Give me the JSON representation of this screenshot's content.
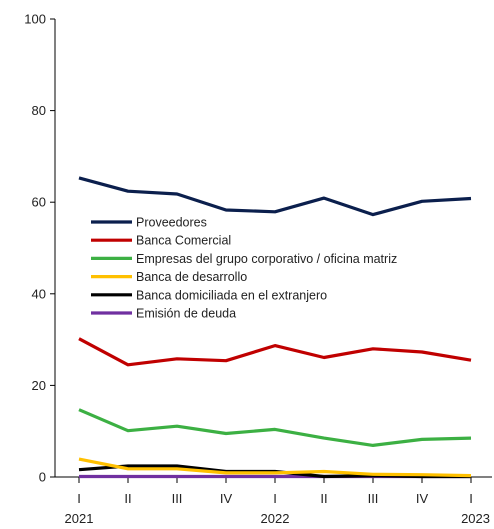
{
  "chart_data": {
    "type": "line",
    "title": "",
    "xlabel": "",
    "ylabel": "",
    "ylim": [
      0,
      100
    ],
    "yticks": [
      0,
      20,
      40,
      60,
      80,
      100
    ],
    "grid": false,
    "legend_position": "center-left",
    "categories": [
      "I",
      "II",
      "III",
      "IV",
      "I",
      "II",
      "III",
      "IV",
      "I"
    ],
    "years": [
      {
        "label": "2021",
        "index": 0
      },
      {
        "label": "2022",
        "index": 4
      },
      {
        "label": "2023",
        "index": 8
      }
    ],
    "series": [
      {
        "name": "Proveedores",
        "color": "#0b1f4d",
        "values": [
          65.3,
          62.4,
          61.8,
          58.3,
          57.9,
          60.9,
          57.3,
          60.2,
          60.8
        ]
      },
      {
        "name": "Banca Comercial",
        "color": "#c00000",
        "values": [
          30.2,
          24.5,
          25.8,
          25.4,
          28.7,
          26.1,
          28.0,
          27.3,
          25.5
        ]
      },
      {
        "name": "Empresas del grupo corporativo / oficina matriz",
        "color": "#3cb043",
        "values": [
          14.7,
          10.1,
          11.1,
          9.5,
          10.4,
          8.5,
          6.9,
          8.2,
          8.5
        ]
      },
      {
        "name": "Banca de desarrollo",
        "color": "#ffc000",
        "values": [
          3.9,
          1.8,
          1.8,
          0.9,
          0.9,
          1.2,
          0.6,
          0.5,
          0.3
        ]
      },
      {
        "name": "Banca domiciliada en el extranjero",
        "color": "#000000",
        "values": [
          1.6,
          2.4,
          2.4,
          1.2,
          1.2,
          0.1,
          0.3,
          0.1,
          0.1
        ]
      },
      {
        "name": "Emisión de deuda",
        "color": "#7030a0",
        "values": [
          0.1,
          0.1,
          0.1,
          0.1,
          0.1,
          0.1,
          0.1,
          0.1,
          0.1
        ]
      }
    ]
  }
}
